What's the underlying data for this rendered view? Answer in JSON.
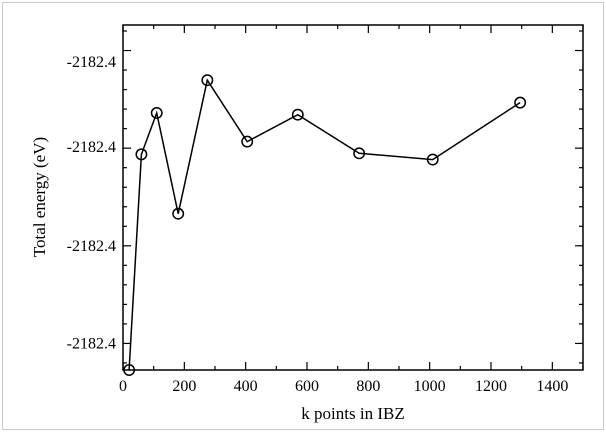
{
  "chart_data": {
    "type": "line",
    "title": "",
    "xlabel": "k points in IBZ",
    "ylabel": "Total energy (eV)",
    "xlim": [
      0,
      1500
    ],
    "ylim": [
      0,
      100
    ],
    "x_ticks": [
      0,
      200,
      400,
      600,
      800,
      1000,
      1200,
      1400
    ],
    "x_tick_labels": [
      "0",
      "200",
      "400",
      "600",
      "800",
      "1000",
      "1200",
      "1400"
    ],
    "y_ticks": [
      7.7,
      36.0,
      64.6,
      89.3
    ],
    "y_tick_labels": [
      "-2182.4",
      "-2182.4",
      "-2182.4",
      "-2182.4"
    ],
    "grid": false,
    "legend": "none",
    "series": [
      {
        "marker": "open-circle",
        "color": "#000000",
        "x": [
          20,
          60,
          110,
          180,
          275,
          405,
          570,
          770,
          1010,
          1295
        ],
        "y": [
          0,
          62.5,
          74.5,
          45.3,
          84.0,
          66.2,
          74.0,
          62.8,
          61.0,
          77.5
        ]
      }
    ]
  }
}
